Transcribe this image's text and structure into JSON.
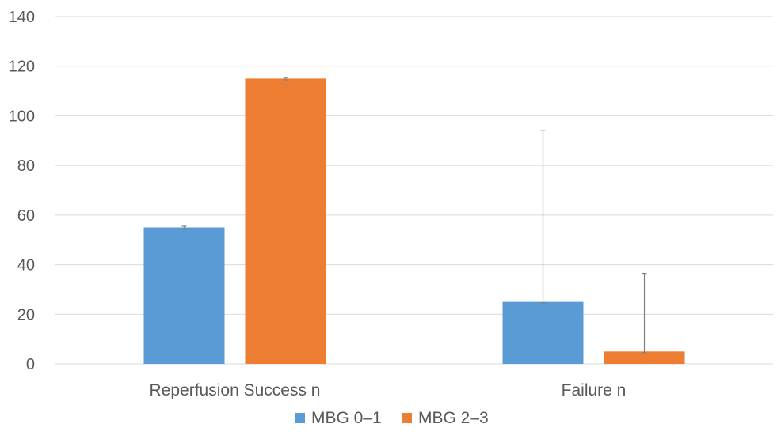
{
  "chart_data": {
    "type": "bar",
    "title": "",
    "xlabel": "",
    "ylabel": "",
    "categories": [
      "Reperfusion Success n",
      "Failure n"
    ],
    "series": [
      {
        "name": "MBG 0–1",
        "color": "#5b9bd5",
        "values": [
          55,
          25
        ],
        "error_upper": [
          0.5,
          69
        ],
        "error_lower": [
          0.5,
          0.5
        ]
      },
      {
        "name": "MBG 2–3",
        "color": "#ed7d31",
        "values": [
          115,
          5
        ],
        "error_upper": [
          0.5,
          31.5
        ],
        "error_lower": [
          0.5,
          0.5
        ]
      }
    ],
    "ylim": [
      0,
      140
    ],
    "yticks": [
      0,
      20,
      40,
      60,
      80,
      100,
      120,
      140
    ],
    "grid": true,
    "legend_position": "bottom"
  }
}
